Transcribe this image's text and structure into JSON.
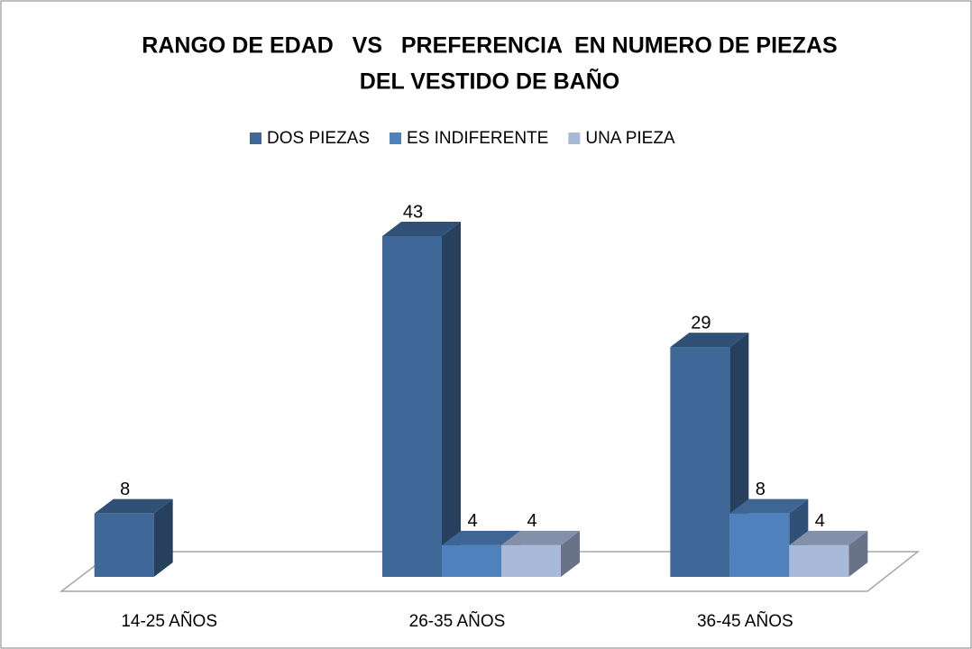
{
  "chart_data": {
    "type": "bar3d",
    "title": [
      "RANGO DE EDAD   VS   PREFERENCIA  EN NUMERO DE PIEZAS",
      "DEL VESTIDO DE BAÑO"
    ],
    "categories": [
      "14-25 AÑOS",
      "26-35 AÑOS",
      "36-45 AÑOS"
    ],
    "series": [
      {
        "name": "DOS PIEZAS",
        "color": "#3f6797",
        "values": [
          8,
          43,
          29
        ]
      },
      {
        "name": "ES INDIFERENTE",
        "color": "#4f81bd",
        "values": [
          null,
          4,
          8
        ]
      },
      {
        "name": "UNA PIEZA",
        "color": "#a9b9d9",
        "values": [
          null,
          4,
          4
        ]
      }
    ],
    "legend": "top"
  }
}
